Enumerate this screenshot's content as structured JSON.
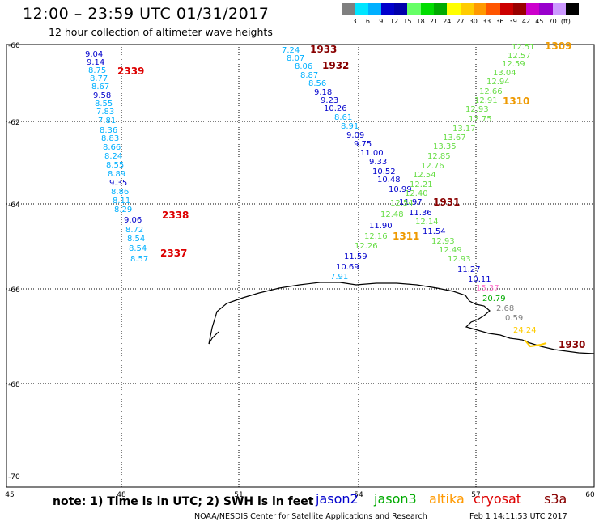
{
  "header": {
    "title": "12:00 – 23:59 UTC 01/31/2017",
    "subtitle": "12 hour collection of altimeter wave heights"
  },
  "colorbar": {
    "colors": [
      "#7f7f7f",
      "#00e5ff",
      "#00b0ff",
      "#0000cc",
      "#0000aa",
      "#66ff66",
      "#00dd00",
      "#00aa00",
      "#ffff00",
      "#ffcc00",
      "#ff9900",
      "#ff5500",
      "#cc0000",
      "#990000",
      "#cc00cc",
      "#9900cc",
      "#cc99ff",
      "#000000"
    ],
    "labels": [
      "3",
      "6",
      "9",
      "12",
      "15",
      "18",
      "21",
      "24",
      "27",
      "30",
      "33",
      "36",
      "39",
      "42",
      "45",
      "70",
      "(ft)"
    ]
  },
  "axes": {
    "lat_labels": [
      "-60",
      "-62",
      "-64",
      "-66",
      "-68",
      "-70"
    ],
    "lon_labels": [
      "45",
      "48",
      "51",
      "54",
      "57",
      "60"
    ]
  },
  "tracks": {
    "west": [
      {
        "v": "9.04",
        "c": "#0000cc"
      },
      {
        "v": "9.14",
        "c": "#0000cc"
      },
      {
        "v": "8.75",
        "c": "#00b0ff"
      },
      {
        "v": "8.77",
        "c": "#00b0ff"
      },
      {
        "v": "8.67",
        "c": "#00b0ff"
      },
      {
        "v": "9.58",
        "c": "#0000cc"
      },
      {
        "v": "8.55",
        "c": "#00b0ff"
      },
      {
        "v": "7.83",
        "c": "#00b0ff"
      },
      {
        "v": "7.81",
        "c": "#00b0ff"
      },
      {
        "v": "8.36",
        "c": "#00b0ff"
      },
      {
        "v": "8.83",
        "c": "#00b0ff"
      },
      {
        "v": "8.66",
        "c": "#00b0ff"
      },
      {
        "v": "8.24",
        "c": "#00b0ff"
      },
      {
        "v": "8.55",
        "c": "#00b0ff"
      },
      {
        "v": "8.89",
        "c": "#00b0ff"
      },
      {
        "v": "9.35",
        "c": "#0000cc"
      },
      {
        "v": "8.86",
        "c": "#00b0ff"
      },
      {
        "v": "8.11",
        "c": "#00b0ff"
      },
      {
        "v": "8.29",
        "c": "#00b0ff"
      },
      {
        "v": "9.06",
        "c": "#0000cc"
      },
      {
        "v": "8.72",
        "c": "#00b0ff"
      },
      {
        "v": "8.54",
        "c": "#00b0ff"
      },
      {
        "v": "8.54",
        "c": "#00b0ff"
      },
      {
        "v": "8.57",
        "c": "#00b0ff"
      }
    ],
    "west_times": [
      {
        "t": "2339",
        "c": "#dd0000"
      },
      {
        "t": "2338",
        "c": "#dd0000"
      },
      {
        "t": "2337",
        "c": "#dd0000"
      }
    ],
    "jason2": [
      {
        "v": "7.24",
        "c": "#00b0ff"
      },
      {
        "v": "8.07",
        "c": "#00b0ff"
      },
      {
        "v": "8.06",
        "c": "#00b0ff"
      },
      {
        "v": "8.87",
        "c": "#00b0ff"
      },
      {
        "v": "8.56",
        "c": "#00b0ff"
      },
      {
        "v": "9.18",
        "c": "#0000cc"
      },
      {
        "v": "9.23",
        "c": "#0000cc"
      },
      {
        "v": "10.26",
        "c": "#0000cc"
      },
      {
        "v": "8.61",
        "c": "#00b0ff"
      },
      {
        "v": "8.91",
        "c": "#00b0ff"
      },
      {
        "v": "9.09",
        "c": "#0000cc"
      },
      {
        "v": "9.75",
        "c": "#0000cc"
      },
      {
        "v": "11.00",
        "c": "#0000cc"
      },
      {
        "v": "9.33",
        "c": "#0000cc"
      },
      {
        "v": "10.52",
        "c": "#0000cc"
      },
      {
        "v": "10.48",
        "c": "#0000cc"
      },
      {
        "v": "10.99",
        "c": "#0000cc"
      },
      {
        "v": "11.97",
        "c": "#0000cc"
      },
      {
        "v": "11.36",
        "c": "#0000cc"
      },
      {
        "v": "12.14",
        "c": "#66dd44"
      },
      {
        "v": "11.54",
        "c": "#0000cc"
      },
      {
        "v": "12.93",
        "c": "#66dd44"
      },
      {
        "v": "12.49",
        "c": "#66dd44"
      },
      {
        "v": "12.93",
        "c": "#66dd44"
      },
      {
        "v": "11.27",
        "c": "#0000cc"
      },
      {
        "v": "10.11",
        "c": "#0000cc"
      },
      {
        "v": "15.37",
        "c": "#ff77cc"
      },
      {
        "v": "20.79",
        "c": "#00aa00"
      },
      {
        "v": "2.68",
        "c": "#7f7f7f"
      },
      {
        "v": "0.59",
        "c": "#7f7f7f"
      },
      {
        "v": "24.24",
        "c": "#ffcc00"
      }
    ],
    "jason2_times": [
      {
        "t": "1933",
        "c": "#880000"
      },
      {
        "t": "1932",
        "c": "#880000"
      },
      {
        "t": "1931",
        "c": "#880000"
      },
      {
        "t": "1930",
        "c": "#880000"
      }
    ],
    "jason3": [
      {
        "v": "12.51",
        "c": "#66dd44"
      },
      {
        "v": "12.57",
        "c": "#66dd44"
      },
      {
        "v": "12.59",
        "c": "#66dd44"
      },
      {
        "v": "13.04",
        "c": "#66dd44"
      },
      {
        "v": "12.94",
        "c": "#66dd44"
      },
      {
        "v": "12.66",
        "c": "#66dd44"
      },
      {
        "v": "12.91",
        "c": "#66dd44"
      },
      {
        "v": "12.93",
        "c": "#66dd44"
      },
      {
        "v": "12.75",
        "c": "#66dd44"
      },
      {
        "v": "13.17",
        "c": "#66dd44"
      },
      {
        "v": "13.67",
        "c": "#66dd44"
      },
      {
        "v": "13.35",
        "c": "#66dd44"
      },
      {
        "v": "12.85",
        "c": "#66dd44"
      },
      {
        "v": "12.76",
        "c": "#66dd44"
      },
      {
        "v": "12.54",
        "c": "#66dd44"
      },
      {
        "v": "12.21",
        "c": "#66dd44"
      },
      {
        "v": "12.40",
        "c": "#66dd44"
      },
      {
        "v": "12.54",
        "c": "#66dd44"
      },
      {
        "v": "12.48",
        "c": "#66dd44"
      },
      {
        "v": "11.90",
        "c": "#0000cc"
      },
      {
        "v": "12.16",
        "c": "#66dd44"
      },
      {
        "v": "12.26",
        "c": "#66dd44"
      },
      {
        "v": "11.59",
        "c": "#0000cc"
      },
      {
        "v": "10.69",
        "c": "#0000cc"
      },
      {
        "v": "7.91",
        "c": "#00b0ff"
      }
    ],
    "jason3_times": [
      {
        "t": "1309",
        "c": "#ee9900"
      },
      {
        "t": "1310",
        "c": "#ee9900"
      },
      {
        "t": "1311",
        "c": "#ee9900"
      }
    ]
  },
  "legend": {
    "note": "note:  1) Time is in UTC;  2) SWH is in feet",
    "missions": [
      {
        "name": "jason2",
        "color": "#0000cc"
      },
      {
        "name": "jason3",
        "color": "#00aa00"
      },
      {
        "name": "altika",
        "color": "#ff9900"
      },
      {
        "name": "cryosat",
        "color": "#dd0000"
      },
      {
        "name": "s3a",
        "color": "#880000"
      }
    ]
  },
  "footer": {
    "credit": "NOAA/NESDIS Center for Satellite Applications and Research",
    "timestamp": "Feb  1 14:11:53 UTC 2017"
  }
}
